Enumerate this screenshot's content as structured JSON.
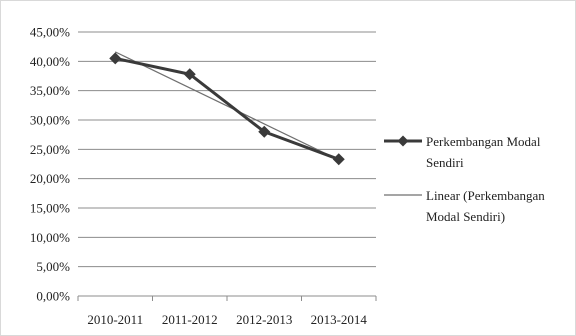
{
  "chart_data": {
    "type": "line",
    "title": "",
    "xlabel": "",
    "ylabel": "",
    "categories": [
      "2010-2011",
      "2011-2012",
      "2012-2013",
      "2013-2014"
    ],
    "series": [
      {
        "name": "Perkembangan Modal Sendiri",
        "values": [
          40.5,
          37.8,
          28.0,
          23.3
        ],
        "color": "#3a3a3a",
        "marker": "diamond"
      }
    ],
    "trendline": {
      "name": "Linear (Perkembangan Modal Sendiri)",
      "type": "linear",
      "color": "#6f6f6f"
    },
    "ylim": [
      0,
      45
    ],
    "yticks": [
      "0,00%",
      "5,00%",
      "10,00%",
      "15,00%",
      "20,00%",
      "25,00%",
      "30,00%",
      "35,00%",
      "40,00%",
      "45,00%"
    ],
    "grid": true,
    "legend_position": "right",
    "legend_lines": [
      [
        "Perkembangan Modal",
        "Sendiri"
      ],
      [
        "Linear (Perkembangan",
        "Modal Sendiri)"
      ]
    ]
  }
}
